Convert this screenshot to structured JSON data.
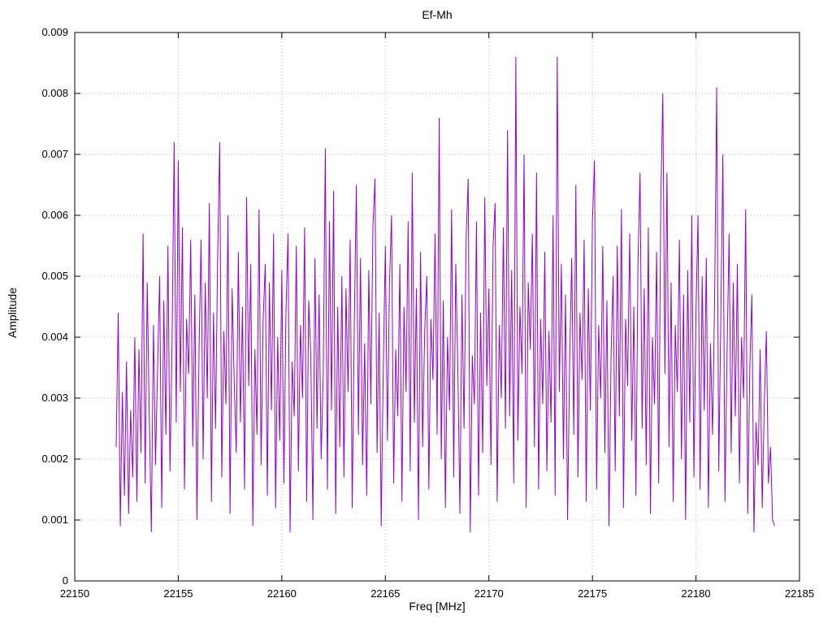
{
  "chart_data": {
    "type": "line",
    "title": "Ef-Mh",
    "xlabel": "Freq [MHz]",
    "ylabel": "Amplitude",
    "xlim": [
      22150,
      22185
    ],
    "ylim": [
      0,
      0.009
    ],
    "x_ticks": [
      22150,
      22155,
      22160,
      22165,
      22170,
      22175,
      22180,
      22185
    ],
    "y_ticks": [
      0,
      0.001,
      0.002,
      0.003,
      0.004,
      0.005,
      0.006,
      0.007,
      0.008,
      0.009
    ],
    "grid": true,
    "legend": "none",
    "line_color": "#9400d3",
    "series_name": "Ef-Mh",
    "x_start": 22152.0,
    "x_step": 0.1,
    "values": [
      0.0022,
      0.0044,
      0.0009,
      0.0031,
      0.0014,
      0.0036,
      0.0011,
      0.0028,
      0.0017,
      0.004,
      0.0013,
      0.0038,
      0.0021,
      0.0057,
      0.0016,
      0.0049,
      0.0027,
      0.0008,
      0.0042,
      0.0019,
      0.0035,
      0.005,
      0.0012,
      0.0046,
      0.0024,
      0.0055,
      0.0018,
      0.0039,
      0.0072,
      0.0026,
      0.0069,
      0.0031,
      0.0058,
      0.0015,
      0.0043,
      0.0034,
      0.0056,
      0.0022,
      0.0047,
      0.001,
      0.0037,
      0.0056,
      0.002,
      0.0049,
      0.003,
      0.0062,
      0.0013,
      0.0044,
      0.0025,
      0.0053,
      0.0072,
      0.0017,
      0.0041,
      0.0029,
      0.006,
      0.0011,
      0.0048,
      0.0033,
      0.0021,
      0.0054,
      0.0026,
      0.0045,
      0.0015,
      0.0063,
      0.0032,
      0.0052,
      0.0009,
      0.0038,
      0.0024,
      0.0061,
      0.0019,
      0.0043,
      0.0052,
      0.0014,
      0.0049,
      0.0028,
      0.0057,
      0.0012,
      0.004,
      0.0023,
      0.0051,
      0.0016,
      0.0044,
      0.0057,
      0.0008,
      0.0036,
      0.0027,
      0.0055,
      0.0018,
      0.0042,
      0.003,
      0.0058,
      0.0013,
      0.0046,
      0.0037,
      0.001,
      0.0053,
      0.0025,
      0.0047,
      0.002,
      0.0034,
      0.0071,
      0.0015,
      0.0059,
      0.0028,
      0.0064,
      0.0011,
      0.0045,
      0.0022,
      0.005,
      0.0017,
      0.0048,
      0.0031,
      0.0056,
      0.0012,
      0.0042,
      0.0065,
      0.0024,
      0.0053,
      0.0019,
      0.0039,
      0.0014,
      0.0051,
      0.0029,
      0.0058,
      0.0066,
      0.0021,
      0.0044,
      0.0009,
      0.0035,
      0.0055,
      0.0023,
      0.0049,
      0.006,
      0.0016,
      0.0038,
      0.0027,
      0.0052,
      0.0013,
      0.0045,
      0.0031,
      0.0059,
      0.0018,
      0.0067,
      0.0026,
      0.0048,
      0.001,
      0.0054,
      0.0022,
      0.0041,
      0.005,
      0.0015,
      0.0043,
      0.0033,
      0.0057,
      0.0024,
      0.0076,
      0.002,
      0.0046,
      0.0012,
      0.004,
      0.0028,
      0.0061,
      0.0017,
      0.0052,
      0.0035,
      0.0011,
      0.0047,
      0.0025,
      0.0056,
      0.0066,
      0.0008,
      0.0037,
      0.0029,
      0.0059,
      0.0014,
      0.0044,
      0.0021,
      0.0063,
      0.0032,
      0.0048,
      0.0019,
      0.0055,
      0.0062,
      0.0013,
      0.0042,
      0.003,
      0.0058,
      0.0025,
      0.0074,
      0.0027,
      0.0051,
      0.0016,
      0.0086,
      0.0023,
      0.0045,
      0.0034,
      0.007,
      0.0012,
      0.0049,
      0.0038,
      0.0057,
      0.0022,
      0.0067,
      0.0015,
      0.0043,
      0.0029,
      0.0054,
      0.0018,
      0.0041,
      0.0026,
      0.006,
      0.0014,
      0.0086,
      0.0031,
      0.0052,
      0.002,
      0.0047,
      0.001,
      0.0036,
      0.0053,
      0.0024,
      0.0065,
      0.0017,
      0.0044,
      0.0033,
      0.0056,
      0.0013,
      0.0048,
      0.0028,
      0.0059,
      0.0069,
      0.0015,
      0.0042,
      0.003,
      0.0055,
      0.0021,
      0.0046,
      0.0009,
      0.0037,
      0.005,
      0.0018,
      0.0055,
      0.0027,
      0.0061,
      0.0012,
      0.0043,
      0.0032,
      0.0057,
      0.0023,
      0.0045,
      0.0014,
      0.0052,
      0.0067,
      0.0025,
      0.0048,
      0.0019,
      0.0058,
      0.0011,
      0.004,
      0.0029,
      0.0054,
      0.0016,
      0.0062,
      0.008,
      0.0034,
      0.0067,
      0.0022,
      0.0049,
      0.0013,
      0.0042,
      0.0031,
      0.0056,
      0.002,
      0.0047,
      0.001,
      0.0051,
      0.0026,
      0.006,
      0.0017,
      0.0044,
      0.006,
      0.0015,
      0.005,
      0.0028,
      0.0053,
      0.0012,
      0.0039,
      0.0024,
      0.0046,
      0.0081,
      0.0018,
      0.0043,
      0.007,
      0.0013,
      0.0037,
      0.0057,
      0.0021,
      0.0049,
      0.0027,
      0.0052,
      0.0016,
      0.004,
      0.003,
      0.0061,
      0.0011,
      0.0035,
      0.0047,
      0.0008,
      0.0026,
      0.0019,
      0.0038,
      0.0012,
      0.0029,
      0.0041,
      0.0016,
      0.0022,
      0.001,
      0.0009
    ]
  }
}
